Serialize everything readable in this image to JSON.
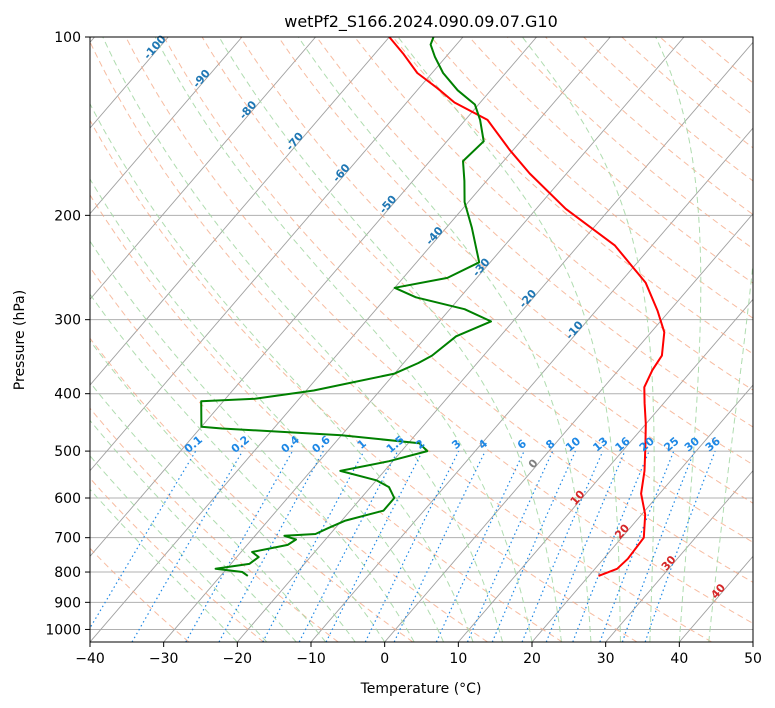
{
  "chart_data": {
    "type": "skew-t",
    "title": "wetPf2_S166.2024.090.09.07.G10",
    "xlabel": "Temperature (°C)",
    "ylabel": "Pressure (hPa)",
    "xlim": [
      -40,
      50
    ],
    "ylim": [
      1050,
      100
    ],
    "y_scale": "log",
    "x_ticks": [
      "−40",
      "−30",
      "−20",
      "−10",
      "0",
      "10",
      "20",
      "30",
      "40",
      "50"
    ],
    "x_tick_values": [
      -40,
      -30,
      -20,
      -10,
      0,
      10,
      20,
      30,
      40,
      50
    ],
    "y_ticks": [
      "100",
      "200",
      "300",
      "400",
      "500",
      "600",
      "700",
      "800",
      "900",
      "1000"
    ],
    "y_tick_values": [
      100,
      200,
      300,
      400,
      500,
      600,
      700,
      800,
      900,
      1000
    ],
    "grid": true,
    "colors": {
      "temperature": "#ff0000",
      "dewpoint": "#008000",
      "isotherm": "#a0a0a0",
      "dry_adiabat": "#f4a582",
      "moist_adiabat": "#a6d8a6",
      "mixing_ratio": "#1e88e5",
      "isotherm_label": "#1f77b4",
      "mixing_label": "#1e88e5",
      "warm_isotherm_label": "#d62728"
    },
    "isotherm_labels_cold": [
      "-100",
      "-90",
      "-80",
      "-70",
      "-60",
      "-50",
      "-40",
      "-30",
      "-20",
      "-10"
    ],
    "isotherm_label_zero": "0",
    "isotherm_labels_warm": [
      "10",
      "20",
      "30",
      "40"
    ],
    "mixing_ratio_labels": [
      "0.1",
      "0.2",
      "0.4",
      "0.6",
      "1",
      "1.5",
      "2",
      "3",
      "4",
      "6",
      "8",
      "10",
      "13",
      "16",
      "20",
      "25",
      "30",
      "36"
    ],
    "series": [
      {
        "name": "temperature",
        "points": [
          {
            "T": 21.3,
            "p": 812
          },
          {
            "T": 23.0,
            "p": 790
          },
          {
            "T": 23.3,
            "p": 760
          },
          {
            "T": 23.0,
            "p": 700
          },
          {
            "T": 20.5,
            "p": 640
          },
          {
            "T": 17.5,
            "p": 590
          },
          {
            "T": 15.3,
            "p": 540
          },
          {
            "T": 12.5,
            "p": 490
          },
          {
            "T": 10.0,
            "p": 450
          },
          {
            "T": 7.4,
            "p": 415
          },
          {
            "T": 5.5,
            "p": 390
          },
          {
            "T": 4.6,
            "p": 365
          },
          {
            "T": 4.2,
            "p": 345
          },
          {
            "T": 1.8,
            "p": 315
          },
          {
            "T": -1.6,
            "p": 290
          },
          {
            "T": -6.5,
            "p": 260
          },
          {
            "T": -15.0,
            "p": 225
          },
          {
            "T": -26.0,
            "p": 195
          },
          {
            "T": -35.0,
            "p": 170
          },
          {
            "T": -40.5,
            "p": 155
          },
          {
            "T": -47.0,
            "p": 138
          },
          {
            "T": -53.5,
            "p": 129
          },
          {
            "T": -57.5,
            "p": 122
          },
          {
            "T": -62.0,
            "p": 115
          },
          {
            "T": -66.0,
            "p": 107
          },
          {
            "T": -70.0,
            "p": 100
          }
        ]
      },
      {
        "name": "dewpoint",
        "points": [
          {
            "T": -26.3,
            "p": 812
          },
          {
            "T": -27.5,
            "p": 800
          },
          {
            "T": -31.5,
            "p": 790
          },
          {
            "T": -27.5,
            "p": 775
          },
          {
            "T": -27.0,
            "p": 755
          },
          {
            "T": -28.5,
            "p": 740
          },
          {
            "T": -24.5,
            "p": 720
          },
          {
            "T": -24.0,
            "p": 705
          },
          {
            "T": -26.0,
            "p": 695
          },
          {
            "T": -22.0,
            "p": 690
          },
          {
            "T": -21.0,
            "p": 675
          },
          {
            "T": -19.5,
            "p": 655
          },
          {
            "T": -15.5,
            "p": 630
          },
          {
            "T": -15.5,
            "p": 600
          },
          {
            "T": -17.5,
            "p": 575
          },
          {
            "T": -20.0,
            "p": 560
          },
          {
            "T": -26.0,
            "p": 540
          },
          {
            "T": -20.5,
            "p": 520
          },
          {
            "T": -16.5,
            "p": 500
          },
          {
            "T": -18.5,
            "p": 485
          },
          {
            "T": -30.0,
            "p": 470
          },
          {
            "T": -47.0,
            "p": 458
          },
          {
            "T": -50.0,
            "p": 455
          },
          {
            "T": -53.0,
            "p": 412
          },
          {
            "T": -46.0,
            "p": 408
          },
          {
            "T": -39.0,
            "p": 395
          },
          {
            "T": -30.0,
            "p": 370
          },
          {
            "T": -28.0,
            "p": 355
          },
          {
            "T": -27.0,
            "p": 345
          },
          {
            "T": -26.0,
            "p": 320
          },
          {
            "T": -23.0,
            "p": 302
          },
          {
            "T": -28.0,
            "p": 288
          },
          {
            "T": -36.0,
            "p": 275
          },
          {
            "T": -40.0,
            "p": 265
          },
          {
            "T": -34.0,
            "p": 255
          },
          {
            "T": -31.5,
            "p": 240
          },
          {
            "T": -36.5,
            "p": 210
          },
          {
            "T": -40.5,
            "p": 190
          },
          {
            "T": -43.0,
            "p": 175
          },
          {
            "T": -45.5,
            "p": 162
          },
          {
            "T": -45.0,
            "p": 150
          },
          {
            "T": -48.0,
            "p": 138
          },
          {
            "T": -50.5,
            "p": 130
          },
          {
            "T": -54.5,
            "p": 123
          },
          {
            "T": -58.5,
            "p": 115
          },
          {
            "T": -61.5,
            "p": 108
          },
          {
            "T": -63.5,
            "p": 103
          },
          {
            "T": -64.0,
            "p": 100
          }
        ]
      }
    ]
  }
}
